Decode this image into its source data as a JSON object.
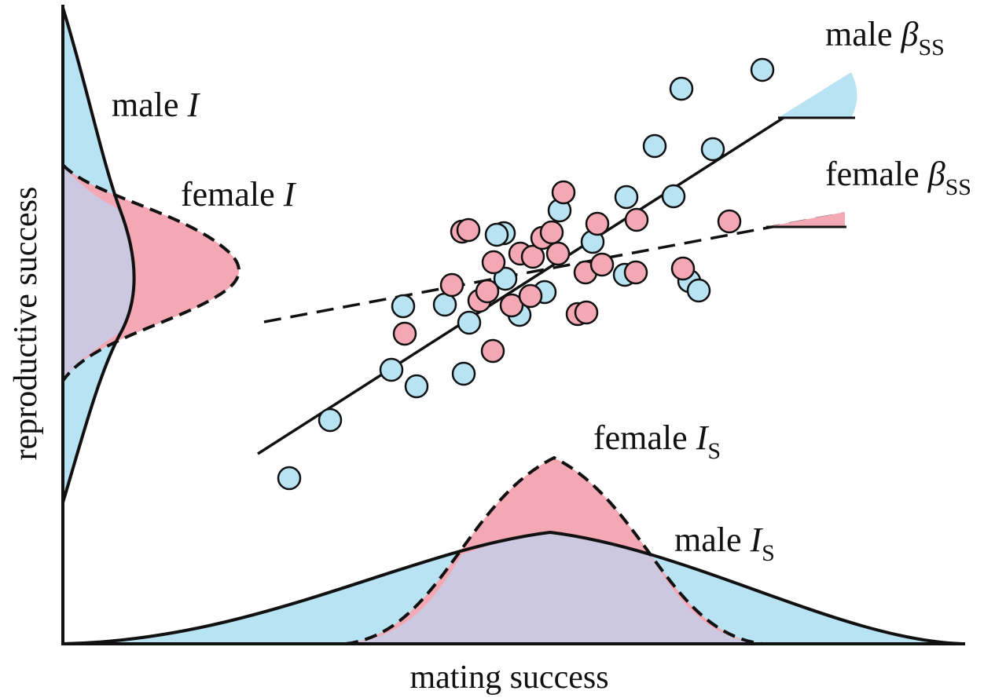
{
  "axes": {
    "x_label": "mating success",
    "y_label": "reproductive success"
  },
  "labels": {
    "male_I": {
      "prefix": "male ",
      "symbol": "I"
    },
    "female_I": {
      "prefix": "female ",
      "symbol": "I"
    },
    "male_beta": {
      "prefix": "male ",
      "symbol": "β",
      "sub": "SS"
    },
    "female_beta": {
      "prefix": "female ",
      "symbol": "β",
      "sub": "SS"
    },
    "female_Is": {
      "prefix": "female ",
      "symbol": "I",
      "sub": "S"
    },
    "male_Is": {
      "prefix": "male ",
      "symbol": "I",
      "sub": "S"
    }
  },
  "colors": {
    "male": "#b8e3f3",
    "female": "#f4a8b3",
    "overlap": "#ccc8e2",
    "ink": "#111111"
  },
  "points": {
    "male": [
      [
        368,
        609
      ],
      [
        420,
        535
      ],
      [
        498,
        471
      ],
      [
        530,
        492
      ],
      [
        590,
        476
      ],
      [
        513,
        390
      ],
      [
        566,
        388
      ],
      [
        597,
        411
      ],
      [
        643,
        355
      ],
      [
        661,
        401
      ],
      [
        693,
        372
      ],
      [
        641,
        297
      ],
      [
        632,
        299
      ],
      [
        712,
        268
      ],
      [
        797,
        251
      ],
      [
        754,
        308
      ],
      [
        795,
        350
      ],
      [
        833,
        186
      ],
      [
        867,
        113
      ],
      [
        907,
        190
      ],
      [
        857,
        250
      ],
      [
        877,
        358
      ],
      [
        889,
        370
      ],
      [
        970,
        89
      ]
    ],
    "female": [
      [
        515,
        425
      ],
      [
        575,
        363
      ],
      [
        588,
        295
      ],
      [
        596,
        293
      ],
      [
        610,
        383
      ],
      [
        620,
        371
      ],
      [
        627,
        447
      ],
      [
        628,
        334
      ],
      [
        651,
        389
      ],
      [
        662,
        323
      ],
      [
        675,
        377
      ],
      [
        678,
        327
      ],
      [
        690,
        303
      ],
      [
        702,
        296
      ],
      [
        710,
        323
      ],
      [
        717,
        245
      ],
      [
        735,
        400
      ],
      [
        746,
        398
      ],
      [
        745,
        347
      ],
      [
        760,
        285
      ],
      [
        766,
        337
      ],
      [
        809,
        347
      ],
      [
        810,
        280
      ],
      [
        869,
        342
      ],
      [
        928,
        282
      ]
    ]
  }
}
